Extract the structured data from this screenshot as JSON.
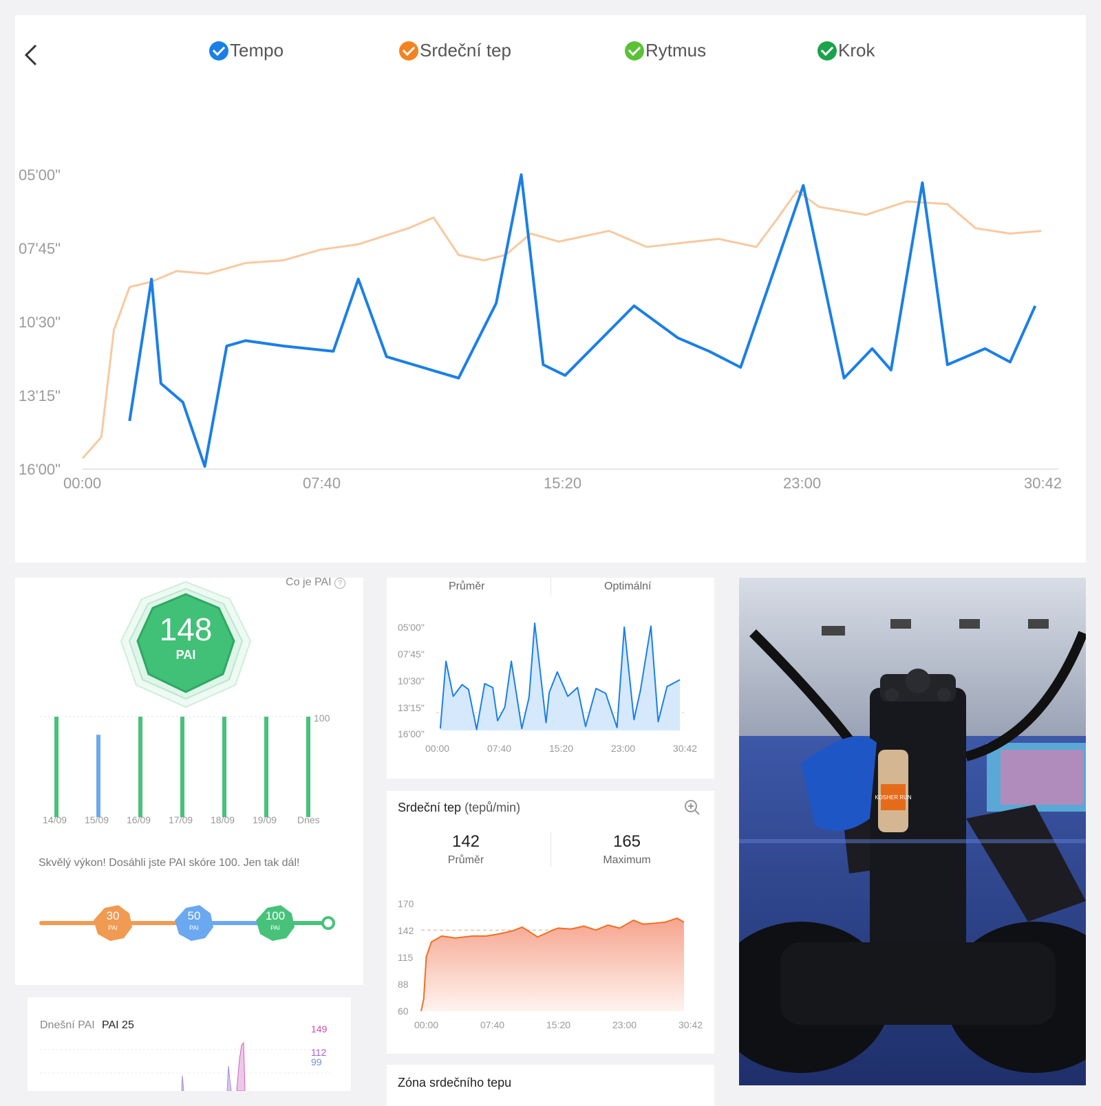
{
  "top": {
    "legend": [
      {
        "label": "Tempo",
        "color": "#1a7fe8"
      },
      {
        "label": "Srdeční tep",
        "color": "#f58220"
      },
      {
        "label": "Rytmus",
        "color": "#5bc236"
      },
      {
        "label": "Krok",
        "color": "#1aa34a"
      }
    ]
  },
  "chart_data": [
    {
      "type": "line",
      "y_tick_labels": [
        "05'00\"",
        "07'45\"",
        "10'30\"",
        "13'15\"",
        "16'00\""
      ],
      "x_tick_labels": [
        "00:00",
        "07:40",
        "15:20",
        "23:00",
        "30:42"
      ],
      "series": [
        {
          "name": "Tempo",
          "color": "#1a7fe8",
          "x": [
            1.5,
            2.2,
            2.5,
            3.2,
            3.9,
            4.6,
            5.2,
            6.4,
            8.0,
            8.8,
            9.7,
            12.0,
            13.2,
            14.0,
            14.7,
            15.4,
            17.6,
            19.0,
            20.0,
            21.0,
            23.0,
            24.3,
            25.2,
            25.8,
            26.8,
            27.6,
            28.8,
            29.6,
            30.4
          ],
          "y": [
            14.2,
            8.9,
            12.8,
            13.5,
            15.9,
            11.4,
            11.2,
            11.4,
            11.6,
            8.9,
            11.8,
            12.6,
            9.8,
            5.0,
            12.1,
            12.5,
            9.9,
            11.1,
            11.6,
            12.2,
            5.4,
            12.6,
            11.5,
            12.3,
            5.3,
            12.1,
            11.5,
            12.0,
            9.9
          ]
        },
        {
          "name": "Srdeční tep",
          "color": "#f7c9a0",
          "x": [
            0.0,
            0.6,
            1.0,
            1.5,
            2.2,
            3.0,
            4.0,
            5.2,
            6.4,
            7.6,
            8.8,
            10.4,
            11.2,
            12.0,
            12.8,
            13.5,
            14.3,
            15.2,
            16.8,
            18.0,
            19.5,
            20.3,
            21.5,
            22.2,
            22.8,
            23.5,
            25.0,
            26.3,
            27.6,
            28.5,
            29.6,
            30.6
          ],
          "y": [
            15.6,
            14.8,
            10.8,
            9.2,
            9.0,
            8.6,
            8.7,
            8.3,
            8.2,
            7.8,
            7.6,
            7.0,
            6.6,
            8.0,
            8.2,
            8.0,
            7.2,
            7.5,
            7.1,
            7.7,
            7.5,
            7.4,
            7.7,
            6.6,
            5.6,
            6.2,
            6.5,
            6.0,
            6.1,
            7.0,
            7.2,
            7.1
          ]
        }
      ]
    },
    {
      "type": "area",
      "title": "",
      "y_tick_labels": [
        "05'00\"",
        "07'45\"",
        "10'30\"",
        "13'15\"",
        "16'00\""
      ],
      "x_tick_labels": [
        "00:00",
        "07:40",
        "15:20",
        "23:00",
        "30:42"
      ],
      "series": [
        {
          "name": "",
          "color": "#1a7fe8",
          "x": [
            0.5,
            1.2,
            2.1,
            3.2,
            4.0,
            5.0,
            6.0,
            7.0,
            7.6,
            8.5,
            9.3,
            10.6,
            11.5,
            12.2,
            13.6,
            14.0,
            15.0,
            16.3,
            17.5,
            18.5,
            19.8,
            21.0,
            22.4,
            23.3,
            24.5,
            25.3,
            26.6,
            27.5,
            28.6,
            30.2
          ],
          "y": [
            15.8,
            8.9,
            12.5,
            11.3,
            11.8,
            15.9,
            11.2,
            11.6,
            15.0,
            13.6,
            8.9,
            15.8,
            12.6,
            5.0,
            15.2,
            12.1,
            10.0,
            12.5,
            11.6,
            15.6,
            11.7,
            12.2,
            15.7,
            5.4,
            14.9,
            11.9,
            5.3,
            15.1,
            11.5,
            10.8
          ]
        }
      ]
    },
    {
      "type": "area",
      "title": "Srdeční tep",
      "y_tick_labels": [
        "170",
        "142",
        "115",
        "88",
        "60"
      ],
      "x_tick_labels": [
        "00:00",
        "07:40",
        "15:20",
        "23:00",
        "30:42"
      ],
      "series": [
        {
          "name": "",
          "color": "#f07020",
          "x": [
            0.0,
            0.3,
            0.6,
            1.2,
            2.4,
            4.0,
            6.0,
            7.6,
            9.0,
            10.6,
            11.8,
            13.6,
            15.4,
            16.0,
            17.5,
            19.0,
            20.4,
            21.8,
            23.2,
            24.8,
            25.9,
            27.4,
            28.5,
            29.9,
            30.7
          ],
          "y": [
            60,
            72,
            115,
            130,
            136,
            134,
            136,
            136,
            138,
            141,
            145,
            135,
            142,
            144,
            143,
            146,
            142,
            147,
            144,
            152,
            148,
            149,
            150,
            154,
            150
          ]
        }
      ]
    }
  ],
  "pai": {
    "help_link": "Co je PAI",
    "score": "148",
    "unit": "PAI",
    "bars": [
      {
        "label": "14/09",
        "value": 100,
        "color": "#48c27a"
      },
      {
        "label": "15/09",
        "value": 82,
        "color": "#6aa8f0"
      },
      {
        "label": "16/09",
        "value": 100,
        "color": "#48c27a"
      },
      {
        "label": "17/09",
        "value": 100,
        "color": "#48c27a"
      },
      {
        "label": "18/09",
        "value": 100,
        "color": "#48c27a"
      },
      {
        "label": "19/09",
        "value": 100,
        "color": "#48c27a"
      },
      {
        "label": "Dnes",
        "value": 100,
        "color": "#48c27a"
      }
    ],
    "ref_label": "100",
    "message": "Skvělý výkon! Dosáhli jste PAI skóre 100. Jen tak dál!",
    "milestones": [
      {
        "value": "30",
        "unit": "PAI",
        "color": "#f09a52"
      },
      {
        "value": "50",
        "unit": "PAI",
        "color": "#6aa8f0"
      },
      {
        "value": "100",
        "unit": "PAI",
        "color": "#48c27a"
      }
    ]
  },
  "pai_today": {
    "label": "Dnešní PAI",
    "value": "PAI 25",
    "tick_labels": [
      "149",
      "112",
      "99"
    ]
  },
  "pace_card": {
    "col1": "Průměr",
    "col2": "Optimální"
  },
  "hr_card": {
    "unit": "(tepů/min)",
    "avg_value": "142",
    "avg_label": "Průměr",
    "max_value": "165",
    "max_label": "Maximum"
  },
  "zone_card": {
    "title": "Zóna srdečního tepu"
  },
  "photo": {
    "bottle_text": "KOSHER RUN"
  }
}
